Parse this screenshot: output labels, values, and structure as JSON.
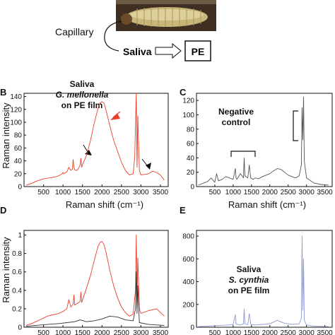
{
  "figure": {
    "capillary_label": "Capillary",
    "saliva_label": "Saliva",
    "pe_box_label": "PE",
    "larva_icon": "caterpillar-photo"
  },
  "chart_data": [
    {
      "panel": "B",
      "type": "line",
      "annotation": [
        "Saliva",
        "G. mellonella",
        "on PE film"
      ],
      "xlabel": "Raman shift (cm⁻¹)",
      "ylabel": "Raman intensity",
      "xlim": [
        0,
        3700
      ],
      "ylim": [
        0,
        145
      ],
      "xticks": [
        500,
        1000,
        1500,
        2000,
        2500,
        3000,
        3500
      ],
      "yticks": [
        0,
        20,
        40,
        60,
        80,
        100,
        120,
        140
      ],
      "grid": false,
      "series": [
        {
          "color": "#e8402c",
          "x": [
            50,
            200,
            300,
            400,
            500,
            600,
            700,
            800,
            900,
            980,
            1000,
            1020,
            1100,
            1150,
            1200,
            1240,
            1260,
            1280,
            1300,
            1350,
            1400,
            1440,
            1460,
            1480,
            1500,
            1600,
            1700,
            1800,
            1900,
            1950,
            2000,
            2050,
            2100,
            2200,
            2300,
            2400,
            2500,
            2600,
            2700,
            2800,
            2840,
            2880,
            2900,
            2920,
            2960,
            3000,
            3100,
            3200,
            3300,
            3400,
            3500,
            3600
          ],
          "y": [
            2,
            5,
            8,
            10,
            12,
            13,
            14,
            15,
            17,
            20,
            22,
            20,
            23,
            30,
            25,
            27,
            42,
            30,
            26,
            25,
            28,
            34,
            44,
            30,
            34,
            48,
            70,
            98,
            122,
            130,
            132,
            130,
            120,
            95,
            72,
            55,
            38,
            25,
            18,
            20,
            45,
            145,
            30,
            110,
            25,
            18,
            19,
            20,
            24,
            22,
            18,
            10
          ]
        }
      ],
      "arrows": [
        "black-arrow",
        "red-arrowhead",
        "black-arrow"
      ]
    },
    {
      "panel": "C",
      "type": "line",
      "annotation": [
        "Negative",
        "control"
      ],
      "xlim": [
        0,
        3700
      ],
      "ylim": [
        0,
        130
      ],
      "xticks": [
        500,
        1000,
        1500,
        2000,
        2500,
        3000,
        3500
      ],
      "yticks": [
        0,
        20,
        40,
        60,
        80,
        100,
        120
      ],
      "grid": false,
      "series": [
        {
          "color": "#555555",
          "x": [
            50,
            200,
            300,
            400,
            500,
            550,
            600,
            700,
            800,
            900,
            1000,
            1060,
            1080,
            1100,
            1200,
            1280,
            1300,
            1320,
            1400,
            1440,
            1460,
            1480,
            1550,
            1600,
            1700,
            1800,
            1900,
            2000,
            2100,
            2200,
            2300,
            2400,
            2500,
            2600,
            2700,
            2800,
            2860,
            2880,
            2900,
            2920,
            2940,
            3000,
            3200,
            3400,
            3600
          ],
          "y": [
            2,
            5,
            7,
            12,
            6,
            18,
            8,
            10,
            14,
            12,
            10,
            25,
            12,
            10,
            18,
            12,
            40,
            15,
            12,
            30,
            20,
            12,
            10,
            12,
            11,
            14,
            16,
            18,
            22,
            25,
            24,
            20,
            16,
            14,
            12,
            15,
            30,
            110,
            65,
            125,
            35,
            12,
            5,
            3,
            2
          ]
        }
      ],
      "brackets": [
        "fingerprint-region",
        "ch-stretch-region"
      ]
    },
    {
      "panel": "D",
      "type": "line",
      "xlim": [
        0,
        3700
      ],
      "ylim": [
        0,
        1.05
      ],
      "xticks": [
        500,
        1000,
        1500,
        2000,
        2500,
        3000,
        3500
      ],
      "yticks": [
        0,
        0.2,
        0.4,
        0.6,
        0.8,
        1
      ],
      "ylabel": "Raman intensity",
      "grid": false,
      "series": [
        {
          "color": "#e8402c",
          "x": [
            50,
            200,
            300,
            400,
            500,
            600,
            700,
            800,
            900,
            1000,
            1100,
            1150,
            1200,
            1260,
            1280,
            1300,
            1440,
            1460,
            1480,
            1600,
            1700,
            1800,
            1900,
            1950,
            2000,
            2050,
            2100,
            2200,
            2300,
            2400,
            2500,
            2600,
            2700,
            2800,
            2860,
            2880,
            2900,
            2920,
            2960,
            3000,
            3200,
            3400,
            3600
          ],
          "y": [
            0.02,
            0.04,
            0.06,
            0.08,
            0.1,
            0.12,
            0.13,
            0.14,
            0.15,
            0.17,
            0.2,
            0.3,
            0.22,
            0.25,
            0.35,
            0.24,
            0.28,
            0.38,
            0.27,
            0.42,
            0.55,
            0.72,
            0.88,
            0.92,
            0.93,
            0.9,
            0.82,
            0.62,
            0.45,
            0.32,
            0.22,
            0.16,
            0.12,
            0.14,
            0.4,
            1.0,
            0.3,
            0.75,
            0.2,
            0.15,
            0.18,
            0.2,
            0.12
          ]
        },
        {
          "color": "#333333",
          "x": [
            50,
            300,
            600,
            900,
            1100,
            1300,
            1440,
            1600,
            1800,
            2000,
            2200,
            2400,
            2600,
            2800,
            2860,
            2880,
            2900,
            2920,
            2960,
            3200,
            3600
          ],
          "y": [
            0.01,
            0.02,
            0.03,
            0.04,
            0.05,
            0.06,
            0.08,
            0.06,
            0.07,
            0.09,
            0.12,
            0.11,
            0.08,
            0.07,
            0.2,
            0.6,
            0.15,
            0.45,
            0.05,
            0.03,
            0.02
          ]
        }
      ]
    },
    {
      "panel": "E",
      "type": "line",
      "annotation": [
        "Saliva",
        "S. cynthia",
        "on PE film"
      ],
      "xlim": [
        0,
        3700
      ],
      "ylim": [
        0,
        850
      ],
      "xticks": [
        500,
        1000,
        1500,
        2000,
        2500,
        3000,
        3500
      ],
      "yticks": [
        0,
        200,
        400,
        600,
        800
      ],
      "grid": false,
      "series": [
        {
          "color": "#8f9bd0",
          "x": [
            50,
            300,
            600,
            900,
            1000,
            1060,
            1080,
            1100,
            1200,
            1280,
            1300,
            1320,
            1400,
            1440,
            1460,
            1480,
            1600,
            1800,
            2000,
            2200,
            2400,
            2600,
            2800,
            2860,
            2880,
            2900,
            2920,
            2940,
            3000,
            3200,
            3600
          ],
          "y": [
            5,
            10,
            15,
            20,
            25,
            110,
            30,
            25,
            20,
            30,
            160,
            30,
            22,
            120,
            70,
            25,
            20,
            25,
            30,
            60,
            35,
            25,
            30,
            80,
            800,
            150,
            600,
            60,
            20,
            10,
            5
          ]
        }
      ]
    }
  ]
}
